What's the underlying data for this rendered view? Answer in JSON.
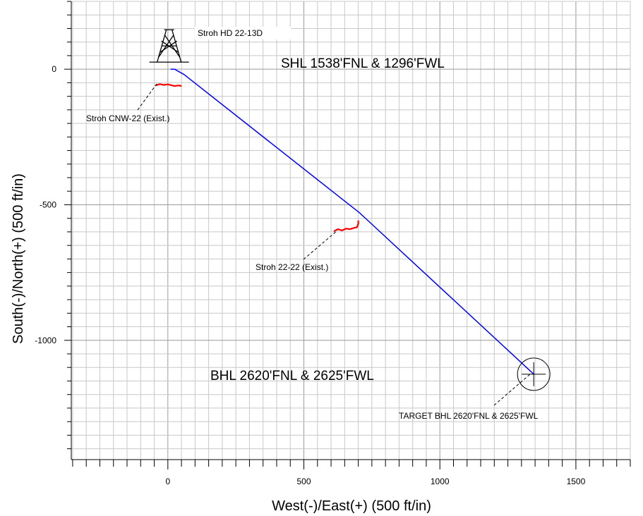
{
  "chart_data": {
    "type": "line",
    "title": "",
    "xlabel": "West(-)/East(+) (500 ft/in)",
    "ylabel": "South(-)/North(+) (500 ft/in)",
    "xlim": [
      -355,
      1700
    ],
    "ylim": [
      -1440,
      250
    ],
    "x_ticks": [
      0,
      500,
      1000,
      1500
    ],
    "y_ticks": [
      0,
      -500,
      -1000
    ],
    "grid": true,
    "series": [
      {
        "name": "Stroh HD 22-13D",
        "color": "#0000ff",
        "points": [
          [
            10,
            0
          ],
          [
            25,
            0
          ],
          [
            60,
            -20
          ],
          [
            705,
            -530
          ],
          [
            1345,
            -1125
          ]
        ]
      },
      {
        "name": "Stroh CNW-22 (Exist.)",
        "color": "#ff0000",
        "points": [
          [
            -45,
            -60
          ],
          [
            -30,
            -55
          ],
          [
            -15,
            -58
          ],
          [
            0,
            -56
          ],
          [
            15,
            -60
          ],
          [
            25,
            -62
          ],
          [
            40,
            -60
          ],
          [
            50,
            -62
          ]
        ]
      },
      {
        "name": "Stroh 22-22 (Exist.)",
        "color": "#ff0000",
        "points": [
          [
            610,
            -598
          ],
          [
            625,
            -590
          ],
          [
            640,
            -595
          ],
          [
            655,
            -588
          ],
          [
            670,
            -590
          ],
          [
            685,
            -585
          ],
          [
            695,
            -583
          ],
          [
            700,
            -570
          ],
          [
            700,
            -558
          ]
        ]
      }
    ],
    "annotations": [
      {
        "text": "Stroh HD 22-13D",
        "x": 95,
        "y": 135
      },
      {
        "text": "SHL 1538'FNL & 1296'FWL",
        "x": 415,
        "y": 20
      },
      {
        "text": "Stroh CNW-22 (Exist.)",
        "x": -305,
        "y": -180
      },
      {
        "text": "Stroh 22-22 (Exist.)",
        "x": 320,
        "y": -730
      },
      {
        "text": "BHL 2620'FNL & 2625'FWL",
        "x": 155,
        "y": -1135
      },
      {
        "text": "TARGET BHL 2620'FNL & 2625'FWL",
        "x": 855,
        "y": -1283
      }
    ],
    "target": {
      "x": 1345,
      "y": -1125
    }
  }
}
